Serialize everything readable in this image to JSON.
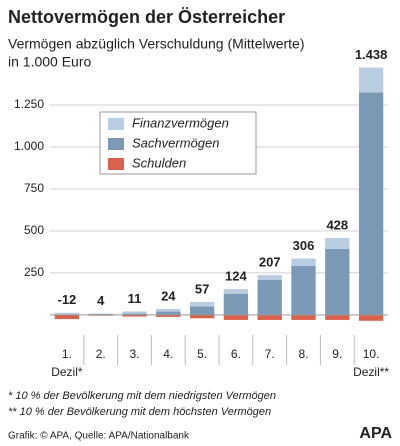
{
  "chart_data": {
    "type": "stacked-bar",
    "title": "Nettovermögen der Österreicher",
    "subtitle": [
      "Vermögen abzüglich Verschuldung (Mittelwerte)",
      "in 1.000 Euro"
    ],
    "categories": [
      "1.",
      "2.",
      "3.",
      "4.",
      "5.",
      "6.",
      "7.",
      "8.",
      "9.",
      "10."
    ],
    "category_notes": [
      "Dezil*",
      "Dezil**"
    ],
    "series": [
      {
        "name": "Finanzvermögen",
        "color": "#b9cde0",
        "values": [
          10,
          7,
          13,
          16,
          27,
          29,
          29,
          44,
          65,
          148
        ]
      },
      {
        "name": "Sachvermögen",
        "color": "#7c98b7",
        "values": [
          3,
          2,
          8,
          20,
          50,
          125,
          208,
          292,
          393,
          1325
        ]
      },
      {
        "name": "Schulden",
        "color": "#d8634d",
        "values": [
          -25,
          -5,
          -10,
          -12,
          -20,
          -30,
          -30,
          -30,
          -30,
          -35
        ]
      }
    ],
    "net": {
      "values": [
        -12,
        4,
        11,
        24,
        57,
        124,
        207,
        306,
        428,
        1438
      ],
      "value_labels": [
        "-12",
        "4",
        "11",
        "24",
        "57",
        "124",
        "207",
        "306",
        "428",
        "1.438"
      ]
    },
    "ylim": [
      -60,
      1500
    ],
    "yticks": [
      250,
      500,
      750,
      {
        "value": 1000,
        "label": "1.000"
      },
      {
        "value": 1250,
        "label": "1.250"
      }
    ],
    "grid": true,
    "footnotes": [
      "* 10 % der Bevölkerung mit dem niedrigsten Vermögen",
      "** 10 % der Bevölkerung mit dem höchsten Vermögen"
    ],
    "source": "Grafik: © APA, Quelle: APA/Nationalbank",
    "logo": "APA"
  }
}
